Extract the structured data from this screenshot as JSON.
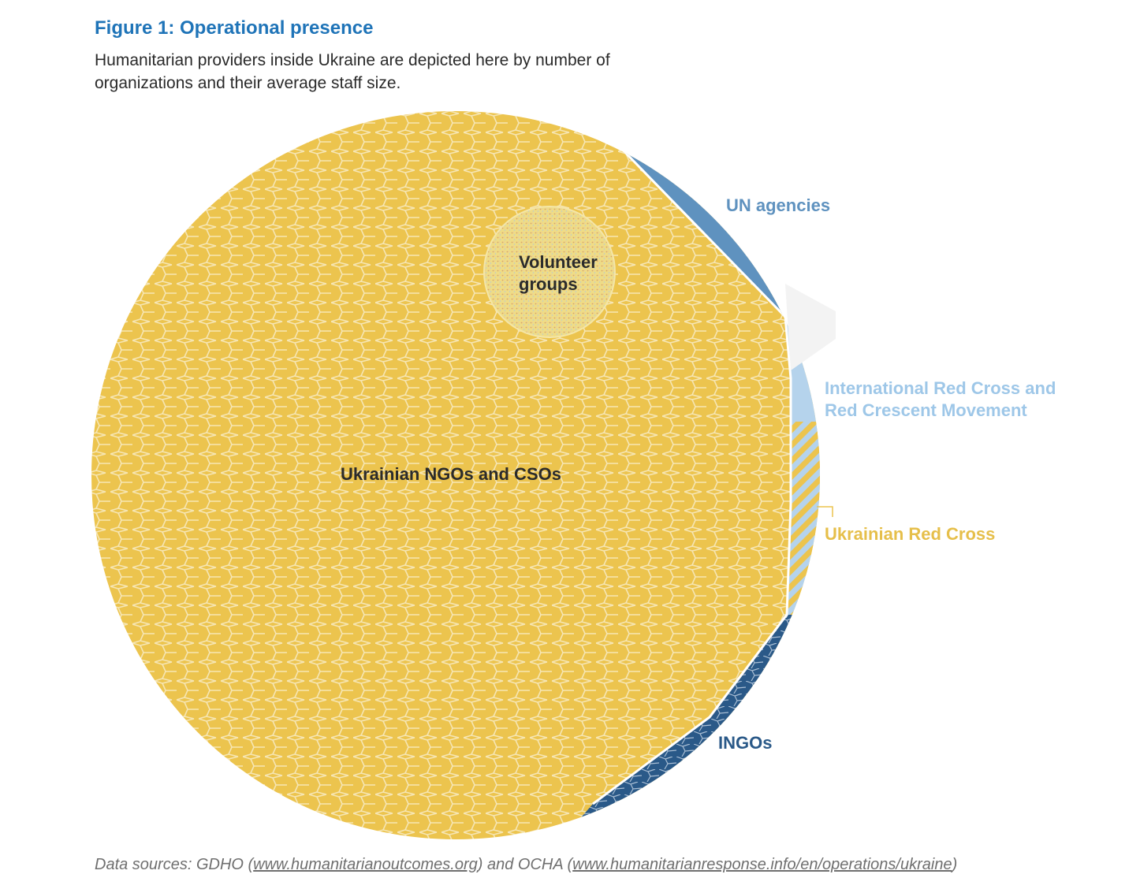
{
  "title": "Figure 1: Operational presence",
  "subtitle": "Humanitarian providers inside Ukraine are depicted here by number of organizations and their average staff size.",
  "source": {
    "prefix": "Data sources: GDHO (",
    "link1": "www.humanitarianoutcomes.org",
    "middle": ") and OCHA (",
    "link2": "www.humanitarianresponse.info/en/operations/ukraine",
    "suffix": ")"
  },
  "colors": {
    "ngo": "#ecc44e",
    "volunteer": "#efdc86",
    "un": "#5f92bf",
    "icrc": "#b5d3ec",
    "urc": "#ecc44e",
    "ingo": "#2a5988",
    "cell_line": "#f6e6b4"
  },
  "chart_data": {
    "type": "voronoi-treemap",
    "title": "Figure 1: Operational presence",
    "categories": [
      {
        "key": "ngo",
        "label": "Ukrainian NGOs and CSOs",
        "lines": [
          "Ukrainian NGOs and CSOs"
        ]
      },
      {
        "key": "volunteer",
        "label": "Volunteer groups",
        "lines": [
          "Volunteer",
          "groups"
        ]
      },
      {
        "key": "un",
        "label": "UN agencies",
        "lines": [
          "UN agencies"
        ]
      },
      {
        "key": "icrc",
        "label": "International Red Cross and Red Crescent Movement",
        "lines": [
          "International Red Cross and",
          "Red Crescent Movement"
        ]
      },
      {
        "key": "urc",
        "label": "Ukrainian Red Cross",
        "lines": [
          "Ukrainian Red Cross"
        ]
      },
      {
        "key": "ingo",
        "label": "INGOs",
        "lines": [
          "INGOs"
        ]
      }
    ]
  }
}
